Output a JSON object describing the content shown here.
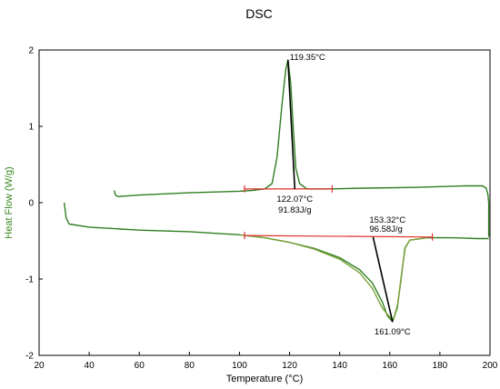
{
  "chart_data": {
    "type": "line",
    "title": "DSC",
    "xlabel": "Temperature (°C)",
    "ylabel": "Heat Flow (W/g)",
    "xlim": [
      20,
      200
    ],
    "ylim": [
      -2,
      2
    ],
    "xticks": [
      20,
      40,
      60,
      80,
      100,
      120,
      140,
      160,
      180,
      200
    ],
    "yticks": [
      -2,
      -1,
      0,
      1,
      2
    ],
    "grid": false,
    "colors": {
      "curve": "#2f7d1f",
      "curve_alt": "#7aa33a",
      "baseline": "#e0302a",
      "tangent": "#000000",
      "axis_label": "#3a8a1f"
    },
    "series": [
      {
        "points": [
          [
            50,
            0.16
          ],
          [
            50.5,
            0.1
          ],
          [
            51.5,
            0.08
          ],
          [
            60,
            0.1
          ],
          [
            80,
            0.13
          ],
          [
            100,
            0.15
          ],
          [
            105,
            0.16
          ],
          [
            110,
            0.18
          ],
          [
            113,
            0.25
          ],
          [
            115,
            0.6
          ],
          [
            117,
            1.3
          ],
          [
            118.5,
            1.75
          ],
          [
            119.35,
            1.87
          ],
          [
            120.5,
            1.55
          ],
          [
            121.5,
            0.95
          ],
          [
            122.5,
            0.45
          ],
          [
            124,
            0.25
          ],
          [
            127,
            0.18
          ],
          [
            135,
            0.18
          ],
          [
            150,
            0.19
          ],
          [
            170,
            0.2
          ],
          [
            190,
            0.22
          ],
          [
            197,
            0.22
          ],
          [
            198.5,
            0.19
          ],
          [
            199.2,
            0.1
          ],
          [
            199.5,
            0.0
          ],
          [
            199.5,
            -0.45
          ]
        ]
      },
      {
        "points": [
          [
            30,
            0.0
          ],
          [
            30.8,
            -0.2
          ],
          [
            32,
            -0.28
          ],
          [
            40,
            -0.32
          ],
          [
            60,
            -0.36
          ],
          [
            80,
            -0.38
          ],
          [
            100,
            -0.42
          ],
          [
            110,
            -0.46
          ],
          [
            120,
            -0.52
          ],
          [
            130,
            -0.6
          ],
          [
            140,
            -0.72
          ],
          [
            148,
            -0.88
          ],
          [
            153,
            -1.05
          ],
          [
            157,
            -1.3
          ],
          [
            159,
            -1.48
          ],
          [
            161.09,
            -1.56
          ],
          [
            163,
            -1.38
          ],
          [
            164.5,
            -1.0
          ],
          [
            166,
            -0.6
          ],
          [
            168,
            -0.49
          ],
          [
            175,
            -0.46
          ],
          [
            185,
            -0.46
          ],
          [
            195,
            -0.47
          ],
          [
            199.5,
            -0.47
          ]
        ]
      },
      {
        "points": [
          [
            100,
            -0.42
          ],
          [
            110,
            -0.46
          ],
          [
            120,
            -0.52
          ],
          [
            130,
            -0.61
          ],
          [
            140,
            -0.74
          ],
          [
            148,
            -0.92
          ],
          [
            153,
            -1.12
          ],
          [
            157,
            -1.38
          ],
          [
            160,
            -1.5
          ],
          [
            161.6,
            -1.52
          ],
          [
            163.2,
            -1.32
          ],
          [
            164.6,
            -0.95
          ],
          [
            166.2,
            -0.58
          ],
          [
            168,
            -0.49
          ],
          [
            175,
            -0.46
          ]
        ]
      }
    ],
    "baselines": [
      {
        "from": [
          102,
          0.18
        ],
        "to": [
          137,
          0.18
        ]
      },
      {
        "from": [
          102,
          -0.43
        ],
        "to": [
          177,
          -0.45
        ]
      }
    ],
    "tangents": [
      {
        "from": [
          119.35,
          1.87
        ],
        "to": [
          122.07,
          0.18
        ]
      },
      {
        "from": [
          153.32,
          -0.45
        ],
        "to": [
          161.09,
          -1.56
        ]
      }
    ],
    "annotations": [
      {
        "text": "119.35°C",
        "x": 119.35,
        "y": 1.87,
        "anchor": "start"
      },
      {
        "text": "122.07°C",
        "x": 122.07,
        "y": 0.18,
        "anchor": "middle"
      },
      {
        "text": "91.83J/g",
        "x": 122.07,
        "y": 0.18,
        "anchor": "middle"
      },
      {
        "text": "153.32°C",
        "x": 153.32,
        "y": -0.45,
        "anchor": "start"
      },
      {
        "text": "96.58J/g",
        "x": 153.32,
        "y": -0.45,
        "anchor": "start"
      },
      {
        "text": "161.09°C",
        "x": 161.09,
        "y": -1.56,
        "anchor": "middle"
      }
    ]
  }
}
